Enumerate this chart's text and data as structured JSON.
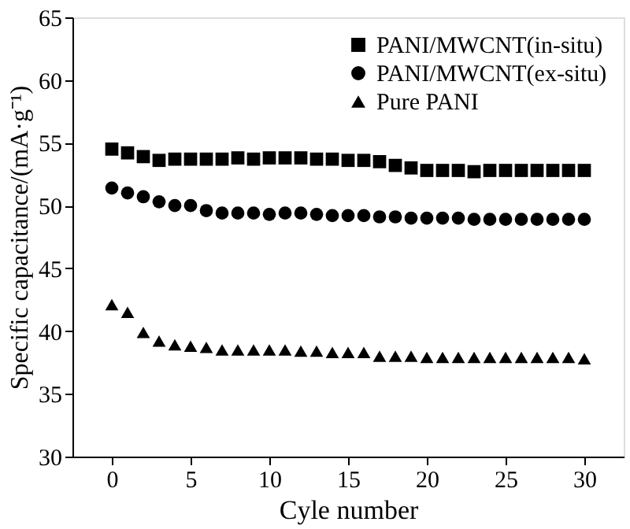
{
  "chart_data": {
    "type": "scatter",
    "xlabel": "Cyle number",
    "ylabel": "Specific capacitance/(mA·g⁻¹)",
    "x": [
      0,
      1,
      2,
      3,
      4,
      5,
      6,
      7,
      8,
      9,
      10,
      11,
      12,
      13,
      14,
      15,
      16,
      17,
      18,
      19,
      20,
      21,
      22,
      23,
      24,
      25,
      26,
      27,
      28,
      29,
      30
    ],
    "xlim": [
      -2.5,
      32.5
    ],
    "xticks": [
      0,
      5,
      10,
      15,
      20,
      25,
      30
    ],
    "ylim": [
      30,
      65
    ],
    "yticks": [
      30,
      35,
      40,
      45,
      50,
      55,
      60,
      65
    ],
    "grid": false,
    "legend": "top right",
    "series": [
      {
        "name": "PANI/MWCNT(in-situ)",
        "color": "#000000",
        "marker": "square",
        "values": [
          54.5,
          54.2,
          53.9,
          53.6,
          53.7,
          53.7,
          53.7,
          53.7,
          53.8,
          53.7,
          53.8,
          53.8,
          53.8,
          53.7,
          53.7,
          53.6,
          53.6,
          53.5,
          53.2,
          53.0,
          52.8,
          52.8,
          52.8,
          52.7,
          52.8,
          52.8,
          52.8,
          52.8,
          52.8,
          52.8,
          52.8
        ]
      },
      {
        "name": "PANI/MWCNT(ex-situ)",
        "color": "#000000",
        "marker": "circle",
        "values": [
          51.4,
          51.0,
          50.7,
          50.3,
          50.0,
          50.0,
          49.6,
          49.4,
          49.4,
          49.4,
          49.3,
          49.4,
          49.4,
          49.3,
          49.2,
          49.2,
          49.2,
          49.1,
          49.1,
          49.0,
          49.0,
          49.0,
          49.0,
          48.9,
          48.9,
          48.9,
          48.9,
          48.9,
          48.9,
          48.9,
          48.9
        ]
      },
      {
        "name": "Pure PANI",
        "color": "#000000",
        "marker": "triangle",
        "values": [
          42.1,
          41.5,
          39.9,
          39.2,
          38.9,
          38.8,
          38.7,
          38.5,
          38.5,
          38.5,
          38.5,
          38.5,
          38.4,
          38.4,
          38.3,
          38.3,
          38.3,
          38.0,
          38.0,
          38.0,
          37.9,
          37.9,
          37.9,
          37.9,
          37.9,
          37.9,
          37.9,
          37.9,
          37.9,
          37.9,
          37.8
        ]
      }
    ]
  }
}
